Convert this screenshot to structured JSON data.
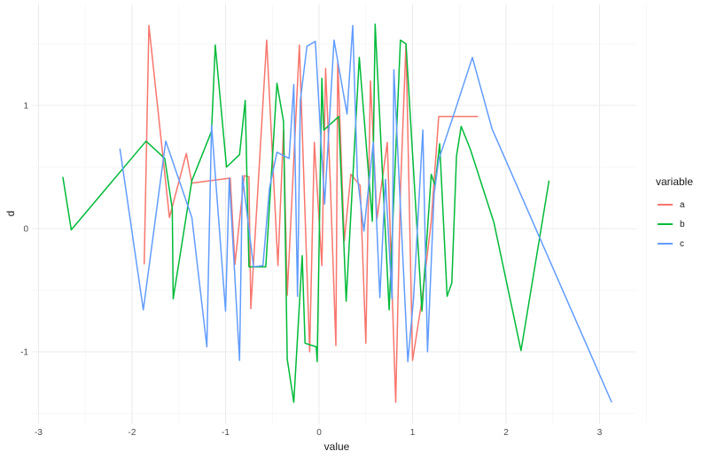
{
  "chart_data": {
    "type": "line",
    "title": "",
    "xlabel": "value",
    "ylabel": "d",
    "xlim": [
      -3.1,
      3.4
    ],
    "ylim": [
      -1.58,
      1.82
    ],
    "x_ticks": [
      -3,
      -2,
      -1,
      0,
      1,
      2,
      3
    ],
    "x_tick_labels": [
      "-3",
      "-2",
      "-1",
      "0",
      "1",
      "2",
      "3"
    ],
    "y_ticks": [
      -1,
      0,
      1
    ],
    "y_tick_labels": [
      "-1",
      "0",
      "1"
    ],
    "grid": true,
    "legend": {
      "title": "variable",
      "position": "right"
    },
    "series": [
      {
        "name": "a",
        "color": "#F8766D",
        "points": [
          [
            -1.87,
            -0.29
          ],
          [
            -1.82,
            1.65
          ],
          [
            -1.6,
            0.09
          ],
          [
            -1.42,
            0.61
          ],
          [
            -1.36,
            0.37
          ],
          [
            -0.95,
            0.41
          ],
          [
            -0.9,
            -0.29
          ],
          [
            -0.8,
            0.43
          ],
          [
            -0.75,
            0.42
          ],
          [
            -0.73,
            -0.65
          ],
          [
            -0.56,
            1.53
          ],
          [
            -0.44,
            -0.3
          ],
          [
            -0.38,
            0.8
          ],
          [
            -0.34,
            -0.54
          ],
          [
            -0.21,
            1.49
          ],
          [
            -0.1,
            -1.0
          ],
          [
            -0.05,
            0.7
          ],
          [
            0.03,
            -0.3
          ],
          [
            0.07,
            1.3
          ],
          [
            0.12,
            0.37
          ],
          [
            0.18,
            -0.95
          ],
          [
            0.2,
            1.35
          ],
          [
            0.27,
            -0.1
          ],
          [
            0.34,
            0.44
          ],
          [
            0.44,
            0.35
          ],
          [
            0.5,
            -0.93
          ],
          [
            0.55,
            1.2
          ],
          [
            0.62,
            0.08
          ],
          [
            0.73,
            0.7
          ],
          [
            0.82,
            -1.41
          ],
          [
            0.87,
            0.3
          ],
          [
            0.93,
            1.5
          ],
          [
            1.0,
            -1.07
          ],
          [
            1.1,
            -0.58
          ],
          [
            1.2,
            0.06
          ],
          [
            1.28,
            0.91
          ],
          [
            1.7,
            0.91
          ]
        ]
      },
      {
        "name": "b",
        "color": "#00BA38",
        "points": [
          [
            -2.74,
            0.42
          ],
          [
            -2.65,
            -0.01
          ],
          [
            -1.85,
            0.71
          ],
          [
            -1.65,
            0.57
          ],
          [
            -1.57,
            0.16
          ],
          [
            -1.56,
            -0.57
          ],
          [
            -1.36,
            0.39
          ],
          [
            -1.15,
            0.79
          ],
          [
            -1.11,
            1.49
          ],
          [
            -0.99,
            0.5
          ],
          [
            -0.85,
            0.6
          ],
          [
            -0.79,
            1.04
          ],
          [
            -0.75,
            -0.31
          ],
          [
            -0.57,
            -0.31
          ],
          [
            -0.45,
            1.18
          ],
          [
            -0.38,
            0.87
          ],
          [
            -0.34,
            -1.06
          ],
          [
            -0.27,
            -1.41
          ],
          [
            -0.18,
            -0.22
          ],
          [
            -0.15,
            -0.93
          ],
          [
            -0.03,
            -0.96
          ],
          [
            -0.02,
            -1.08
          ],
          [
            0.03,
            1.22
          ],
          [
            0.05,
            0.8
          ],
          [
            0.21,
            0.91
          ],
          [
            0.29,
            -0.59
          ],
          [
            0.43,
            1.39
          ],
          [
            0.57,
            0.06
          ],
          [
            0.6,
            1.66
          ],
          [
            0.75,
            -0.66
          ],
          [
            0.87,
            1.53
          ],
          [
            0.93,
            1.5
          ],
          [
            1.1,
            -0.67
          ],
          [
            1.2,
            0.44
          ],
          [
            1.24,
            0.35
          ],
          [
            1.29,
            0.69
          ],
          [
            1.37,
            -0.55
          ],
          [
            1.42,
            -0.44
          ],
          [
            1.47,
            0.59
          ],
          [
            1.52,
            0.83
          ],
          [
            1.62,
            0.64
          ],
          [
            1.87,
            0.05
          ],
          [
            2.16,
            -0.99
          ],
          [
            2.46,
            0.39
          ]
        ]
      },
      {
        "name": "c",
        "color": "#619CFF",
        "points": [
          [
            -2.13,
            0.65
          ],
          [
            -1.88,
            -0.66
          ],
          [
            -1.64,
            0.71
          ],
          [
            -1.36,
            0.09
          ],
          [
            -1.2,
            -0.96
          ],
          [
            -1.15,
            0.84
          ],
          [
            -1.0,
            -0.67
          ],
          [
            -0.96,
            0.41
          ],
          [
            -0.85,
            -1.07
          ],
          [
            -0.82,
            0.43
          ],
          [
            -0.7,
            -0.31
          ],
          [
            -0.6,
            -0.3
          ],
          [
            -0.53,
            0.33
          ],
          [
            -0.45,
            0.62
          ],
          [
            -0.32,
            0.57
          ],
          [
            -0.27,
            1.17
          ],
          [
            -0.23,
            -0.55
          ],
          [
            -0.2,
            1.04
          ],
          [
            -0.13,
            1.48
          ],
          [
            -0.04,
            1.52
          ],
          [
            0.06,
            0.2
          ],
          [
            0.16,
            1.53
          ],
          [
            0.3,
            0.93
          ],
          [
            0.36,
            1.65
          ],
          [
            0.41,
            0.42
          ],
          [
            0.48,
            -0.02
          ],
          [
            0.58,
            0.7
          ],
          [
            0.65,
            -0.56
          ],
          [
            0.71,
            0.4
          ],
          [
            0.78,
            -0.57
          ],
          [
            0.8,
            1.29
          ],
          [
            0.95,
            -1.08
          ],
          [
            1.01,
            -0.57
          ],
          [
            1.11,
            0.8
          ],
          [
            1.16,
            -1.0
          ],
          [
            1.23,
            0.28
          ],
          [
            1.28,
            0.56
          ],
          [
            1.46,
            0.97
          ],
          [
            1.64,
            1.39
          ],
          [
            1.85,
            0.81
          ],
          [
            3.13,
            -1.41
          ]
        ]
      }
    ]
  }
}
